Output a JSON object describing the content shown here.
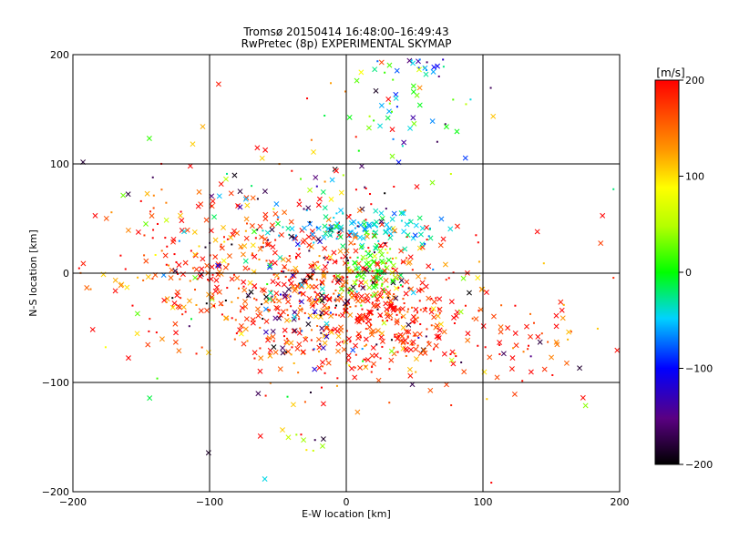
{
  "chart_data": {
    "type": "scatter",
    "title_line1": "Tromsø 20150414 16:48:00–16:49:43",
    "title_line2": "RwPretec (8p) EXPERIMENTAL SKYMAP",
    "xlabel": "E-W location [km]",
    "ylabel": "N-S location [km]",
    "xlim": [
      -200,
      200
    ],
    "ylim": [
      -200,
      200
    ],
    "xticks": [
      -200,
      -100,
      0,
      100,
      200
    ],
    "yticks": [
      -200,
      -100,
      0,
      100,
      200
    ],
    "grid": true,
    "colorbar": {
      "label": "[m/s]",
      "min": -200,
      "max": 200,
      "ticks": [
        200,
        100,
        0,
        -100,
        -200
      ],
      "colormap": "black-purple-blue-cyan-green-yellow-orange-red"
    },
    "markers": [
      "x (cross)",
      "dot"
    ],
    "clusters": [
      {
        "cx": -10,
        "cy": -25,
        "sx": 45,
        "sy": 35,
        "n": 520,
        "vmean": 175,
        "vspread": 40
      },
      {
        "cx": -100,
        "cy": 0,
        "sx": 40,
        "sy": 30,
        "n": 170,
        "vmean": 175,
        "vspread": 45
      },
      {
        "cx": 10,
        "cy": 40,
        "sx": 30,
        "sy": 8,
        "n": 120,
        "vmean": -45,
        "vspread": 20
      },
      {
        "cx": 20,
        "cy": 0,
        "sx": 12,
        "sy": 15,
        "n": 110,
        "vmean": 20,
        "vspread": 30
      },
      {
        "cx": 40,
        "cy": -50,
        "sx": 25,
        "sy": 25,
        "n": 140,
        "vmean": 190,
        "vspread": 25
      },
      {
        "cx": 40,
        "cy": 150,
        "sx": 20,
        "sy": 35,
        "n": 55,
        "vmean": 10,
        "vspread": 80
      },
      {
        "cx": 55,
        "cy": 190,
        "sx": 10,
        "sy": 8,
        "n": 20,
        "vmean": -100,
        "vspread": 70
      },
      {
        "cx": -40,
        "cy": -30,
        "sx": 20,
        "sy": 25,
        "n": 60,
        "vmean": -150,
        "vspread": 80
      },
      {
        "cx": 120,
        "cy": -60,
        "sx": 40,
        "sy": 25,
        "n": 60,
        "vmean": 180,
        "vspread": 40
      },
      {
        "cx": -80,
        "cy": 60,
        "sx": 50,
        "sy": 30,
        "n": 80,
        "vmean": 120,
        "vspread": 120
      },
      {
        "cx": 0,
        "cy": 0,
        "sx": 110,
        "sy": 90,
        "n": 130,
        "vmean": 120,
        "vspread": 150
      },
      {
        "cx": -35,
        "cy": -150,
        "sx": 10,
        "sy": 8,
        "n": 8,
        "vmean": 40,
        "vspread": 30
      }
    ]
  }
}
